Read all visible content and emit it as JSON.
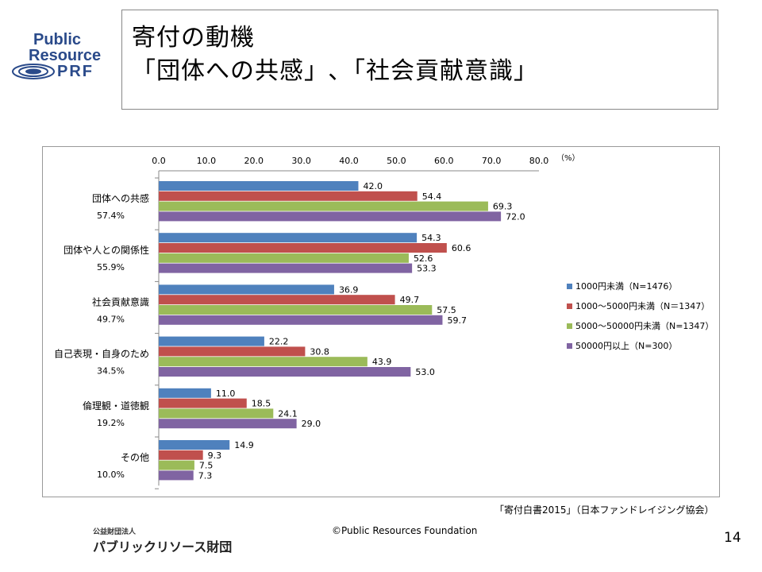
{
  "logo": {
    "line1": "Public",
    "line2": "Resource",
    "line3": "PRF"
  },
  "title": {
    "line1": "寄付の動機",
    "line2": "「団体への共感」､「社会貢献意識」"
  },
  "chart_data": {
    "type": "bar",
    "orientation": "horizontal",
    "unit": "（%）",
    "xlim": [
      0,
      80
    ],
    "ticks": [
      "0.0",
      "10.0",
      "20.0",
      "30.0",
      "40.0",
      "50.0",
      "60.0",
      "70.0",
      "80.0"
    ],
    "categories": [
      "団体への共感",
      "団体や人との関係性",
      "社会貢献意識",
      "自己表現・自身のため",
      "倫理観・道徳観",
      "その他"
    ],
    "category_totals": [
      "57.4%",
      "55.9%",
      "49.7%",
      "34.5%",
      "19.2%",
      "10.0%"
    ],
    "series": [
      {
        "name": "1000円未満（N=1476）",
        "color": "#4f81bd",
        "values": [
          42.0,
          54.3,
          36.9,
          22.2,
          11.0,
          14.9
        ]
      },
      {
        "name": "1000～5000円未満（N＝1347）",
        "color": "#c0504d",
        "values": [
          54.4,
          60.6,
          49.7,
          30.8,
          18.5,
          9.3
        ]
      },
      {
        "name": "5000～50000円未満（N=1347）",
        "color": "#9bbb59",
        "values": [
          69.3,
          52.6,
          57.5,
          43.9,
          24.1,
          7.5
        ]
      },
      {
        "name": "50000円以上（N=300）",
        "color": "#8064a2",
        "values": [
          72.0,
          53.3,
          59.7,
          53.0,
          29.0,
          7.3
        ]
      }
    ],
    "legend_position": "right",
    "grid": false
  },
  "source": "「寄付白書2015」（日本ファンドレイジング協会）",
  "org": {
    "small": "公益財団法人",
    "large": "パブリックリソース財団"
  },
  "copyright": "©Public Resources Foundation",
  "page_number": "14"
}
